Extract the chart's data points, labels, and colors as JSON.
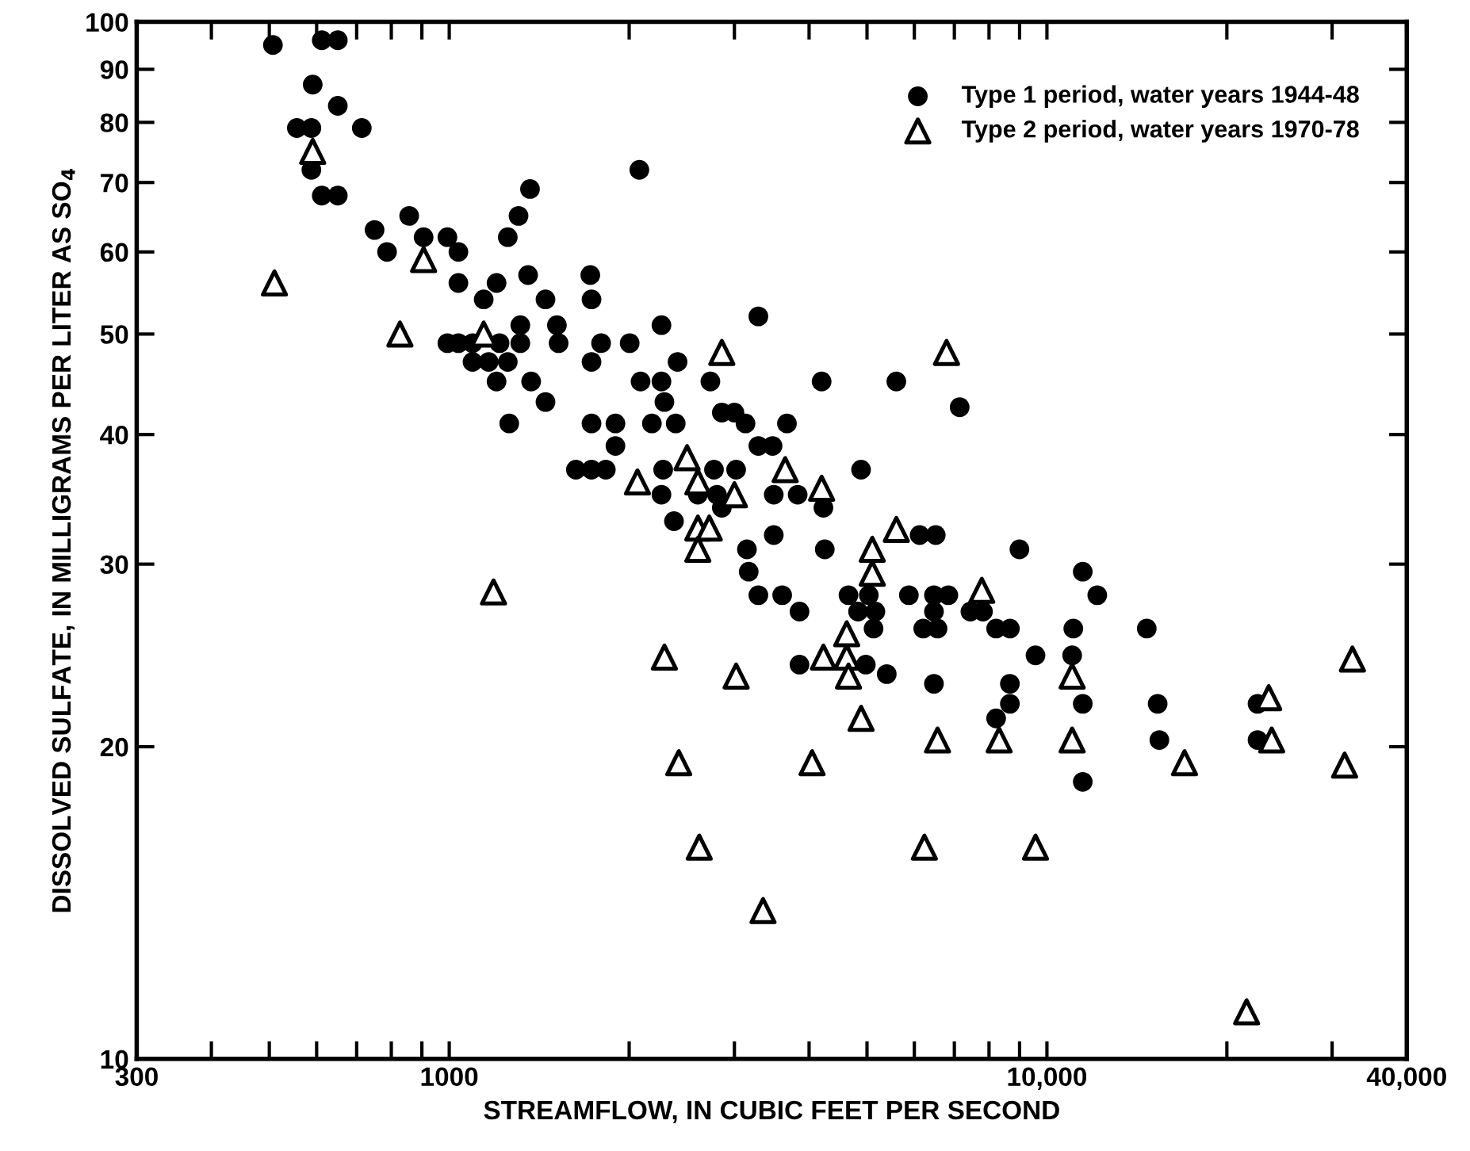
{
  "chart_data": {
    "type": "scatter",
    "xlabel": "STREAMFLOW, IN CUBIC FEET PER SECOND",
    "ylabel": "DISSOLVED SULFATE, IN MILLIGRAMS PER LITER AS SO$_{4}$",
    "log": "xy",
    "xlim": [
      300,
      40000
    ],
    "xticks": [
      300,
      {
        "value": 400,
        "label": null
      },
      {
        "value": 500,
        "label": null
      },
      {
        "value": 600,
        "label": null
      },
      {
        "value": 700,
        "label": null
      },
      {
        "value": 800,
        "label": null
      },
      {
        "value": 900,
        "label": null
      },
      1000,
      {
        "value": 2000,
        "label": null
      },
      {
        "value": 3000,
        "label": null
      },
      {
        "value": 4000,
        "label": null
      },
      {
        "value": 5000,
        "label": null
      },
      {
        "value": 6000,
        "label": null
      },
      {
        "value": 7000,
        "label": null
      },
      {
        "value": 8000,
        "label": null
      },
      {
        "value": 9000,
        "label": null
      },
      {
        "value": 10000,
        "label": "10,000"
      },
      {
        "value": 20000,
        "label": null
      },
      {
        "value": 30000,
        "label": null
      },
      {
        "value": 40000,
        "label": "40,000"
      }
    ],
    "ylim": [
      10,
      100
    ],
    "yticks": [
      10,
      20,
      30,
      40,
      50,
      60,
      70,
      80,
      90,
      100
    ],
    "grid": false,
    "legend": "top right",
    "series": [
      {
        "name": "Type 1 period, water years 1944-48",
        "color": "#000000",
        "marker": "circle",
        "x": [
          507,
          612,
          651,
          591,
          651,
          714,
          556,
          588,
          588,
          612,
          651,
          750,
          787,
          857,
          906,
          993,
          1036,
          1036,
          1200,
          1142,
          993,
          1036,
          1094,
          1094,
          1164,
          1253,
          1214,
          1200,
          1315,
          1260,
          1315,
          1371,
          1355,
          1253,
          1306,
          1365,
          1449,
          1514,
          1524,
          1449,
          1722,
          1730,
          1795,
          1730,
          1730,
          1897,
          1897,
          1629,
          1730,
          1828,
          2004,
          2080,
          2090,
          2265,
          2265,
          2291,
          2183,
          2393,
          2410,
          2280,
          2265,
          2377,
          2735,
          2858,
          3000,
          3131,
          3290,
          3290,
          2773,
          3020,
          2606,
          2805,
          2858,
          4198,
          5598,
          7145,
          3673,
          3475,
          4887,
          3491,
          3828,
          4227,
          3491,
          6124,
          6516,
          3148,
          4249,
          8995,
          3170,
          11480,
          12140,
          3290,
          3606,
          4656,
          5035,
          5875,
          6471,
          6839,
          3855,
          4831,
          5164,
          6471,
          7447,
          7816,
          6209,
          6561,
          5128,
          8222,
          8670,
          11070,
          14690,
          3855,
          4977,
          9570,
          11020,
          5395,
          6471,
          8670,
          8670,
          11480,
          15320,
          8222,
          15420,
          11480,
          22510,
          22510
        ],
        "values": [
          95,
          96,
          96,
          87,
          83,
          79,
          79,
          79,
          72,
          68,
          68,
          63,
          60,
          65,
          62,
          62,
          60,
          56,
          56,
          54,
          49,
          49,
          49,
          47,
          47,
          47,
          49,
          45,
          49,
          41,
          51,
          45,
          57,
          62,
          65,
          69,
          54,
          51,
          49,
          43,
          57,
          54,
          49,
          47,
          41,
          41,
          39,
          37,
          37,
          37,
          49,
          72,
          45,
          51,
          45,
          43,
          41,
          41,
          47,
          37,
          35,
          33,
          45,
          42,
          42,
          41,
          39,
          52,
          37,
          37,
          35,
          35,
          34,
          45,
          45,
          42.5,
          41,
          39,
          37,
          35,
          35,
          34,
          32,
          32,
          32,
          31,
          31,
          31,
          29.5,
          29.5,
          28,
          28,
          28,
          28,
          28,
          28,
          28,
          28,
          27,
          27,
          27,
          27,
          27,
          27,
          26,
          26,
          26,
          26,
          26,
          26,
          26,
          24,
          24,
          24.5,
          24.5,
          23.5,
          23,
          23,
          22,
          22,
          22,
          21.3,
          20.3,
          18.5,
          22,
          20.3
        ]
      },
      {
        "name": "Type 2 period, water years 1970-78",
        "color": "#000000",
        "marker": "triangle",
        "x": [
          510,
          591,
          906,
          827,
          1142,
          2858,
          2500,
          2065,
          2606,
          3000,
          2606,
          2723,
          6792,
          3648,
          4198,
          2606,
          5598,
          5102,
          5102,
          7780,
          4624,
          4227,
          4624,
          4656,
          2291,
          3020,
          11020,
          4887,
          6561,
          8318,
          11020,
          2421,
          4046,
          16990,
          32440,
          23500,
          23770,
          31480,
          21580,
          9570,
          6237,
          2620,
          3350,
          1186
        ],
        "values": [
          56,
          75,
          59,
          50,
          50,
          48,
          38,
          36,
          36,
          35,
          32.5,
          32.5,
          48,
          37,
          35.5,
          31,
          32.4,
          31,
          29.4,
          28.3,
          25.7,
          24.4,
          24.4,
          23.4,
          24.4,
          23.4,
          23.4,
          21.3,
          20.3,
          20.3,
          20.3,
          19.3,
          19.3,
          19.3,
          24.3,
          22.3,
          20.3,
          19.2,
          11.1,
          16,
          16,
          16,
          13.9,
          28.2
        ]
      }
    ]
  }
}
